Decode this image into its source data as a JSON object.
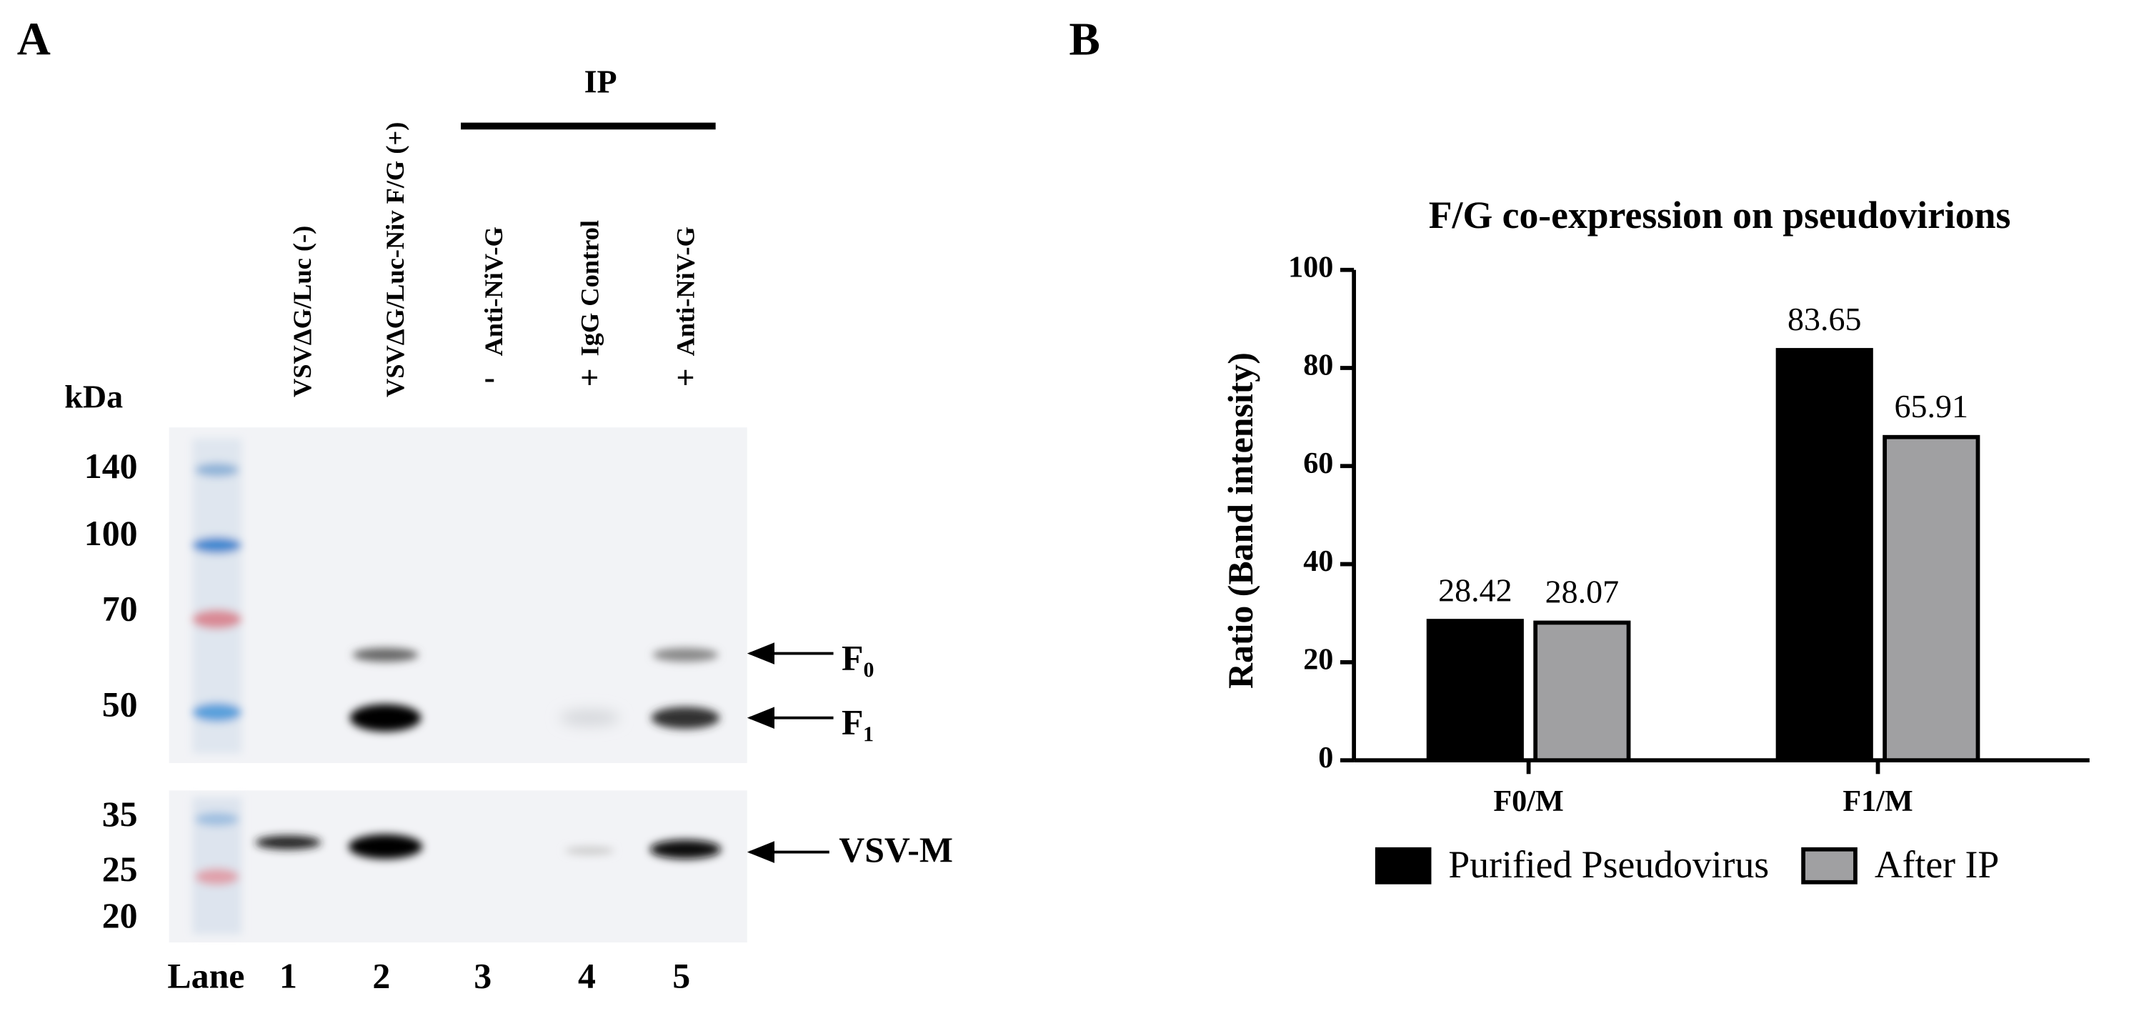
{
  "panel_labels": [
    "A",
    "B"
  ],
  "blot": {
    "ip_label": "IP",
    "lane_labels": [
      "VSVΔG/Luc  (-)",
      "VSVΔG/Luc-Niv F/G (+)",
      "Anti-NiV-G",
      "IgG Control",
      "Anti-NiV-G"
    ],
    "ip_signs": [
      "-",
      "+",
      "+"
    ],
    "kda_label": "kDa",
    "markers": [
      140,
      100,
      70,
      50,
      35,
      25,
      20
    ],
    "band_labels": [
      "F₀",
      "F₁",
      "VSV-M"
    ],
    "lane_title": "Lane",
    "lanes": [
      1,
      2,
      3,
      4,
      5
    ]
  },
  "chart_data": {
    "type": "bar",
    "title": "F/G co-expression on pseudovirions",
    "y_label": "Ratio (Band intensity)",
    "categories": [
      "F0/M",
      "F1/M"
    ],
    "series": [
      {
        "name": "Purified Pseudovirus",
        "color": "#000000",
        "values": [
          28.42,
          83.65
        ]
      },
      {
        "name": "After IP",
        "color": "#a0a0a2",
        "values": [
          28.07,
          65.91
        ]
      }
    ],
    "edgecolor": "#000000",
    "ylim": [
      0,
      100
    ],
    "yticks": [
      0,
      20,
      40,
      60,
      80,
      100
    ],
    "grid": false,
    "legend": "bottom"
  }
}
